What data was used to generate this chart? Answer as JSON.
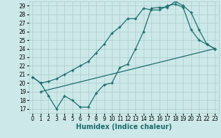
{
  "xlabel": "Humidex (Indice chaleur)",
  "background_color": "#cce8e8",
  "grid_color": "#aacccc",
  "line_color": "#1a6b6b",
  "xlim": [
    -0.5,
    23.5
  ],
  "ylim": [
    16.5,
    29.5
  ],
  "yticks": [
    17,
    18,
    19,
    20,
    21,
    22,
    23,
    24,
    25,
    26,
    27,
    28,
    29
  ],
  "xticks": [
    0,
    1,
    2,
    3,
    4,
    5,
    6,
    7,
    8,
    9,
    10,
    11,
    12,
    13,
    14,
    15,
    16,
    17,
    18,
    19,
    20,
    21,
    22,
    23
  ],
  "line1_x": [
    0,
    1,
    2,
    3,
    4,
    5,
    6,
    7,
    8,
    9,
    10,
    11,
    12,
    13,
    14,
    15,
    16,
    17,
    18,
    19,
    20,
    21,
    22,
    23
  ],
  "line1_y": [
    20.7,
    20.0,
    20.2,
    20.5,
    21.0,
    21.5,
    22.0,
    22.5,
    23.5,
    24.5,
    25.8,
    26.5,
    27.5,
    27.5,
    28.7,
    28.5,
    28.5,
    29.0,
    29.2,
    28.8,
    26.2,
    25.0,
    24.5,
    24.0
  ],
  "line2_x": [
    0,
    1,
    2,
    3,
    4,
    5,
    6,
    7,
    8,
    9,
    10,
    11,
    12,
    13,
    14,
    15,
    16,
    17,
    18,
    19,
    20,
    21,
    22,
    23
  ],
  "line2_y": [
    20.7,
    20.0,
    18.5,
    17.0,
    18.5,
    18.0,
    17.2,
    17.2,
    18.8,
    19.8,
    20.0,
    21.8,
    22.2,
    24.0,
    26.0,
    28.7,
    28.8,
    28.8,
    29.5,
    29.0,
    28.2,
    26.2,
    24.5,
    24.0
  ],
  "line3_x": [
    1,
    23
  ],
  "line3_y": [
    19.0,
    24.0
  ],
  "marker_size": 2.5,
  "linewidth": 0.9,
  "xlabel_fontsize": 7,
  "tick_fontsize": 5.5
}
